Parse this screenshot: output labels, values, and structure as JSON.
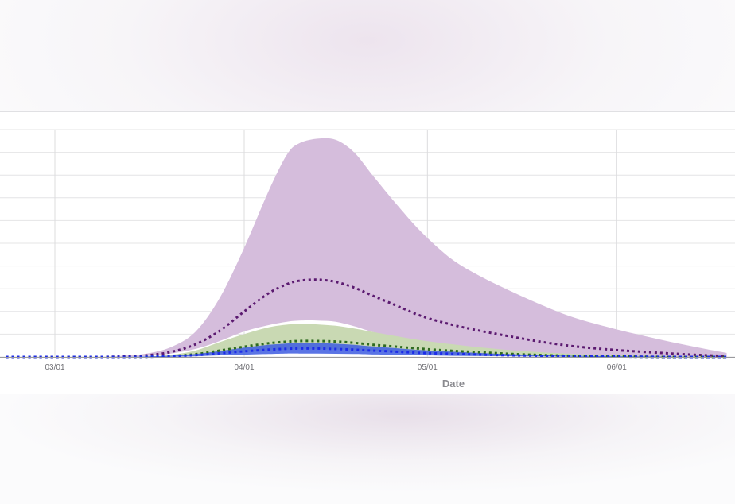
{
  "chart_data": {
    "type": "area",
    "xlabel": "Date",
    "ylabel": "",
    "x_tick_labels": [
      "03/01",
      "04/01",
      "05/01",
      "06/01"
    ],
    "x_ticks": [
      "2020-03-01",
      "2020-04-01",
      "2020-05-01",
      "2020-06-01"
    ],
    "xlim": [
      "2020-02-22",
      "2020-06-19"
    ],
    "ylim": [
      0,
      100
    ],
    "grid": true,
    "x": [
      "2020-02-22",
      "2020-03-01",
      "2020-03-08",
      "2020-03-12",
      "2020-03-16",
      "2020-03-20",
      "2020-03-24",
      "2020-03-28",
      "2020-04-01",
      "2020-04-05",
      "2020-04-08",
      "2020-04-10",
      "2020-04-13",
      "2020-04-16",
      "2020-04-19",
      "2020-04-22",
      "2020-04-26",
      "2020-04-30",
      "2020-05-05",
      "2020-05-10",
      "2020-05-15",
      "2020-05-20",
      "2020-05-25",
      "2020-05-31",
      "2020-06-05",
      "2020-06-10",
      "2020-06-15",
      "2020-06-19"
    ],
    "series": [
      {
        "color": "#5b1a70",
        "band_color": "#d5bddc",
        "mean": [
          0,
          0,
          0,
          0.2,
          0.7,
          2.2,
          5.5,
          11.5,
          20,
          28,
          32,
          33.5,
          34,
          33,
          30.5,
          27,
          22.5,
          18,
          14.2,
          11.3,
          8.8,
          6.5,
          4.7,
          3.2,
          2.3,
          1.5,
          0.8,
          0.4
        ],
        "lower": [
          0,
          0,
          0,
          0.1,
          0.4,
          1.5,
          3.5,
          7,
          11.2,
          14,
          15.5,
          16,
          16,
          15.5,
          13.5,
          11,
          8.4,
          6,
          4.3,
          3,
          2,
          1.3,
          0.8,
          0.4,
          0.2,
          0.1,
          0,
          0
        ],
        "upper": [
          0,
          0,
          0,
          0.5,
          1.5,
          4.3,
          11,
          26,
          48,
          73,
          89,
          94,
          96,
          95.5,
          90,
          80,
          67,
          55,
          43,
          35,
          28.5,
          22.5,
          17.3,
          12.8,
          9.5,
          6.5,
          3.8,
          1.8
        ]
      },
      {
        "color": "#2f6b1f",
        "band_color": "#c9d9b3",
        "mean": [
          0,
          0,
          0,
          0,
          0.1,
          0.4,
          1.2,
          2.8,
          4.5,
          6,
          6.7,
          7,
          7,
          6.8,
          6.2,
          5.4,
          4.5,
          3.6,
          2.7,
          2,
          1.3,
          0.8,
          0.5,
          0.3,
          0.1,
          0,
          0,
          0
        ],
        "lower": [
          0,
          0,
          0,
          0,
          0,
          0.2,
          0.6,
          1.4,
          2.2,
          2.9,
          3.2,
          3.4,
          3.4,
          3.3,
          3,
          2.6,
          2.1,
          1.6,
          1.2,
          0.9,
          0.6,
          0.4,
          0.2,
          0.1,
          0,
          0,
          0,
          0
        ],
        "upper": [
          0,
          0,
          0,
          0,
          0.2,
          0.9,
          2.8,
          6.5,
          10,
          13,
          14.2,
          14.5,
          14.3,
          13.7,
          12.5,
          11,
          9.1,
          7.3,
          5.6,
          4.1,
          2.9,
          2,
          1.3,
          0.8,
          0.4,
          0.2,
          0.1,
          0
        ]
      },
      {
        "color": "#1c2be8",
        "band_color": "#3d5ce0",
        "mean": [
          0,
          0,
          0,
          0,
          0.1,
          0.3,
          0.8,
          1.6,
          2.5,
          3.2,
          3.6,
          3.7,
          3.7,
          3.5,
          3.2,
          2.8,
          2.3,
          1.8,
          1.4,
          1,
          0.7,
          0.5,
          0.3,
          0.2,
          0.1,
          0,
          0,
          0
        ],
        "lower": [
          0,
          0,
          0,
          0,
          0,
          0.1,
          0.3,
          0.7,
          1,
          1.3,
          1.5,
          1.5,
          1.5,
          1.4,
          1.3,
          1.1,
          0.9,
          0.7,
          0.5,
          0.4,
          0.3,
          0.2,
          0.1,
          0,
          0,
          0,
          0,
          0
        ],
        "upper": [
          0,
          0,
          0,
          0,
          0.2,
          0.5,
          1.3,
          2.6,
          4.1,
          5.3,
          5.9,
          6.1,
          6.1,
          5.8,
          5.3,
          4.6,
          3.8,
          3,
          2.3,
          1.7,
          1.2,
          0.8,
          0.5,
          0.3,
          0.2,
          0.1,
          0,
          0
        ]
      }
    ]
  }
}
